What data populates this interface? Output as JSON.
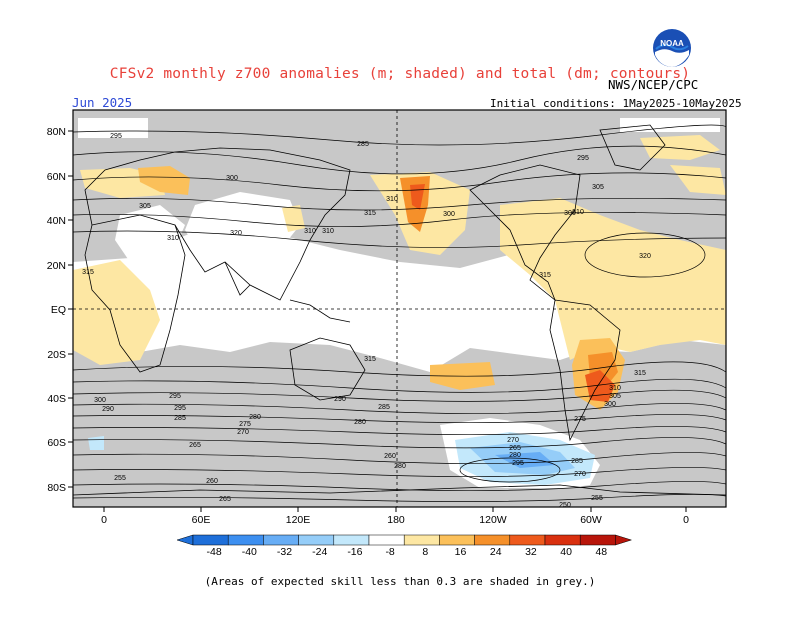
{
  "header": {
    "title": "CFSv2 monthly z700 anomalies (m; shaded) and total (dm; contours)",
    "month": "Jun 2025",
    "agency": "NWS/NCEP/CPC",
    "initial_conditions": "Initial conditions: 1May2025-10May2025",
    "logo_text": "NOAA"
  },
  "map": {
    "lat_ticks": [
      "80N",
      "60N",
      "40N",
      "20N",
      "EQ",
      "20S",
      "40S",
      "60S",
      "80S"
    ],
    "lon_ticks": [
      "0",
      "60E",
      "120E",
      "180",
      "120W",
      "60W",
      "0"
    ],
    "contour_labels": [
      "295",
      "285",
      "300",
      "305",
      "310",
      "315",
      "310",
      "320",
      "315",
      "310",
      "300",
      "310",
      "315",
      "305",
      "320",
      "300",
      "295",
      "315",
      "310",
      "315",
      "310",
      "305",
      "300",
      "290",
      "295",
      "285",
      "300",
      "295",
      "290",
      "285",
      "280",
      "275",
      "270",
      "265",
      "280",
      "260",
      "270",
      "265",
      "280",
      "295",
      "285",
      "280",
      "275",
      "270",
      "260",
      "265",
      "255",
      "250",
      "255"
    ]
  },
  "colorbar": {
    "labels": [
      "-48",
      "-40",
      "-32",
      "-24",
      "-16",
      "-8",
      "8",
      "16",
      "24",
      "32",
      "40",
      "48"
    ],
    "colors": [
      "#1e6fd9",
      "#3d8ff0",
      "#67adf5",
      "#95cdf8",
      "#c3e8fb",
      "#ffffff",
      "#fde7a3",
      "#fbc05a",
      "#f5902a",
      "#ee5a1c",
      "#d9300f",
      "#b8150a"
    ]
  },
  "footnote": "(Areas of expected skill less than 0.3 are shaded in grey.)"
}
